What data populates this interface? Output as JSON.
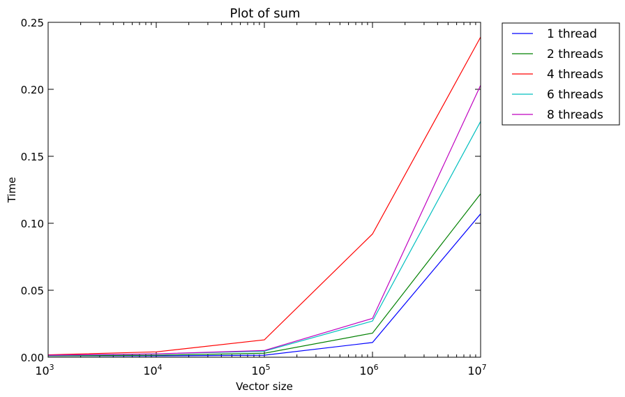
{
  "chart_data": {
    "type": "line",
    "title": "Plot of sum",
    "xlabel": "Vector size",
    "ylabel": "Time",
    "x_scale": "log",
    "x": [
      1000,
      10000,
      100000,
      1000000,
      10000000
    ],
    "xlim": [
      1000,
      10000000
    ],
    "ylim": [
      0,
      0.25
    ],
    "x_tick_labels": [
      {
        "base": "10",
        "exp": "3"
      },
      {
        "base": "10",
        "exp": "4"
      },
      {
        "base": "10",
        "exp": "5"
      },
      {
        "base": "10",
        "exp": "6"
      },
      {
        "base": "10",
        "exp": "7"
      }
    ],
    "y_ticks": [
      0,
      0.05,
      0.1,
      0.15,
      0.2,
      0.25
    ],
    "y_tick_labels": [
      "0.00",
      "0.05",
      "0.10",
      "0.15",
      "0.20",
      "0.25"
    ],
    "grid": false,
    "legend_position": "outside-top-right",
    "series": [
      {
        "name": "1 thread",
        "color": "#0000ff",
        "values": [
          0.001,
          0.001,
          0.0015,
          0.011,
          0.107
        ]
      },
      {
        "name": "2 threads",
        "color": "#008000",
        "values": [
          0.001,
          0.0015,
          0.003,
          0.018,
          0.122
        ]
      },
      {
        "name": "4 threads",
        "color": "#ff0000",
        "values": [
          0.0018,
          0.004,
          0.013,
          0.092,
          0.239
        ]
      },
      {
        "name": "6 threads",
        "color": "#00bfbf",
        "values": [
          0.0012,
          0.0025,
          0.0045,
          0.027,
          0.176
        ]
      },
      {
        "name": "8 threads",
        "color": "#bf00bf",
        "values": [
          0.0015,
          0.0025,
          0.005,
          0.029,
          0.203
        ]
      }
    ]
  }
}
